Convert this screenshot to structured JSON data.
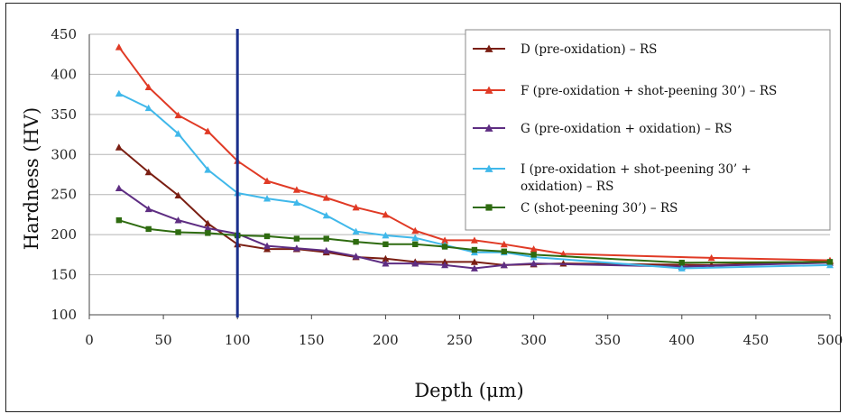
{
  "chart_data": {
    "type": "line",
    "xlabel": "Depth (μm)",
    "ylabel": "Hardness (HV)",
    "xlim": [
      0,
      500
    ],
    "ylim": [
      100,
      450
    ],
    "xticks": [
      0,
      50,
      100,
      150,
      200,
      250,
      300,
      350,
      400,
      450,
      500
    ],
    "yticks": [
      100,
      150,
      200,
      250,
      300,
      350,
      400,
      450
    ],
    "grid": "horizontal",
    "legend_position": "top-right",
    "reference_line": {
      "x": 100,
      "color": "#1a2f8c"
    },
    "series": [
      {
        "name": "D (pre-oxidation) – RS",
        "color": "#7a1e12",
        "marker": "triangle",
        "points": [
          [
            20,
            309
          ],
          [
            40,
            278
          ],
          [
            60,
            249
          ],
          [
            80,
            214
          ],
          [
            100,
            188
          ],
          [
            120,
            182
          ],
          [
            140,
            182
          ],
          [
            160,
            178
          ],
          [
            180,
            172
          ],
          [
            200,
            170
          ],
          [
            220,
            166
          ],
          [
            240,
            166
          ],
          [
            260,
            166
          ],
          [
            280,
            162
          ],
          [
            300,
            163
          ],
          [
            320,
            164
          ],
          [
            420,
            162
          ],
          [
            500,
            167
          ]
        ]
      },
      {
        "name": "F (pre-oxidation + shot-peening 30’) – RS",
        "color": "#e03a25",
        "marker": "triangle",
        "points": [
          [
            20,
            434
          ],
          [
            40,
            384
          ],
          [
            60,
            349
          ],
          [
            80,
            329
          ],
          [
            100,
            292
          ],
          [
            120,
            267
          ],
          [
            140,
            256
          ],
          [
            160,
            246
          ],
          [
            180,
            234
          ],
          [
            200,
            225
          ],
          [
            220,
            205
          ],
          [
            240,
            193
          ],
          [
            260,
            193
          ],
          [
            280,
            188
          ],
          [
            300,
            182
          ],
          [
            320,
            176
          ],
          [
            420,
            171
          ],
          [
            500,
            168
          ]
        ]
      },
      {
        "name": "G (pre-oxidation + oxidation) – RS",
        "color": "#5e2d82",
        "marker": "triangle",
        "points": [
          [
            20,
            258
          ],
          [
            40,
            232
          ],
          [
            60,
            218
          ],
          [
            80,
            208
          ],
          [
            100,
            201
          ],
          [
            120,
            186
          ],
          [
            140,
            183
          ],
          [
            160,
            180
          ],
          [
            180,
            173
          ],
          [
            200,
            164
          ],
          [
            220,
            164
          ],
          [
            240,
            162
          ],
          [
            260,
            158
          ],
          [
            280,
            162
          ],
          [
            300,
            164
          ],
          [
            400,
            160
          ],
          [
            500,
            165
          ]
        ]
      },
      {
        "name": "I (pre-oxidation + shot-peening 30’ + oxidation) – RS",
        "label_lines": [
          "I (pre-oxidation + shot-peening 30’ +",
          "oxidation) – RS"
        ],
        "color": "#40b8ea",
        "marker": "triangle",
        "points": [
          [
            20,
            376
          ],
          [
            40,
            358
          ],
          [
            60,
            326
          ],
          [
            80,
            281
          ],
          [
            100,
            252
          ],
          [
            120,
            245
          ],
          [
            140,
            240
          ],
          [
            160,
            224
          ],
          [
            180,
            204
          ],
          [
            200,
            199
          ],
          [
            220,
            196
          ],
          [
            240,
            187
          ],
          [
            260,
            178
          ],
          [
            280,
            178
          ],
          [
            300,
            172
          ],
          [
            400,
            158
          ],
          [
            500,
            162
          ]
        ]
      },
      {
        "name": "C (shot-peening 30’) – RS",
        "color": "#2e6b10",
        "marker": "square",
        "points": [
          [
            20,
            218
          ],
          [
            40,
            207
          ],
          [
            60,
            203
          ],
          [
            80,
            202
          ],
          [
            100,
            199
          ],
          [
            120,
            198
          ],
          [
            140,
            195
          ],
          [
            160,
            195
          ],
          [
            180,
            191
          ],
          [
            200,
            188
          ],
          [
            220,
            188
          ],
          [
            240,
            185
          ],
          [
            260,
            181
          ],
          [
            280,
            179
          ],
          [
            300,
            175
          ],
          [
            400,
            165
          ],
          [
            500,
            166
          ]
        ]
      }
    ]
  }
}
